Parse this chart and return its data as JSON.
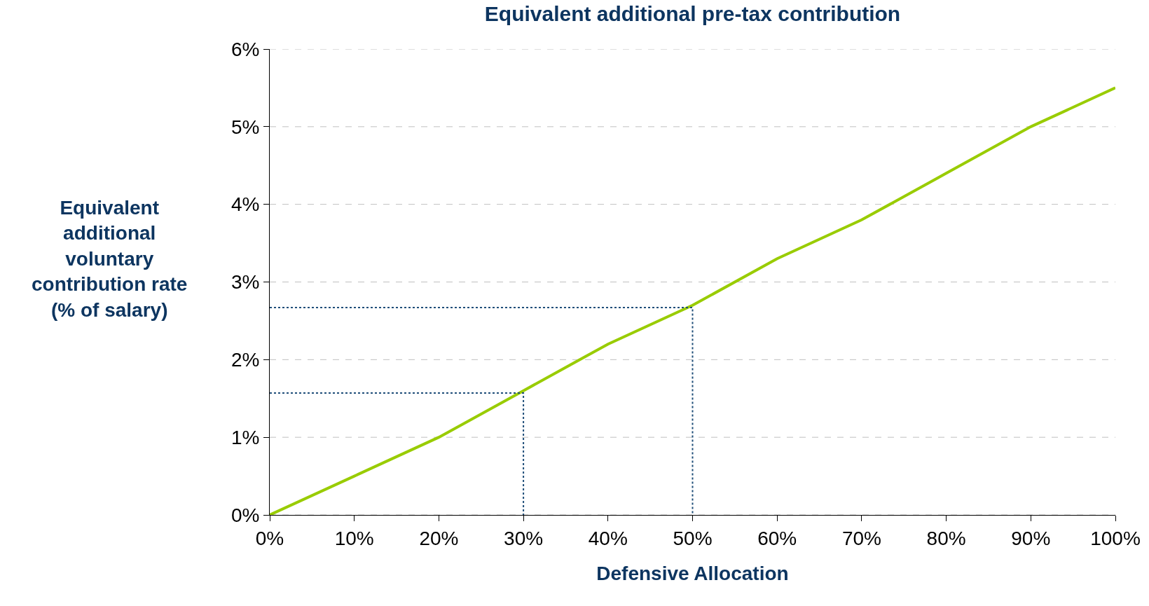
{
  "chart_data": {
    "type": "line",
    "title": "Equivalent additional pre-tax contribution",
    "xlabel": "Defensive Allocation",
    "ylabel": "Equivalent additional voluntary contribution rate (% of salary)",
    "x": [
      0,
      10,
      20,
      30,
      40,
      50,
      60,
      70,
      80,
      90,
      100
    ],
    "series": [
      {
        "color": "#99cc00",
        "values": [
          0,
          0.5,
          1.0,
          1.6,
          2.2,
          2.7,
          3.3,
          3.8,
          4.4,
          5.0,
          5.5
        ]
      },
      {
        "color": "#1f4e79",
        "line_style": "dotted",
        "x": [
          0,
          30,
          30
        ],
        "values": [
          1.57,
          1.57,
          0
        ]
      },
      {
        "color": "#1f4e79",
        "line_style": "dotted",
        "x": [
          0,
          50,
          50
        ],
        "values": [
          2.67,
          2.67,
          0
        ]
      }
    ],
    "xlim": [
      0,
      100
    ],
    "ylim": [
      0,
      6
    ],
    "xticks": [
      {
        "value": 0,
        "label": "0%"
      },
      {
        "value": 10,
        "label": "10%"
      },
      {
        "value": 20,
        "label": "20%"
      },
      {
        "value": 30,
        "label": "30%"
      },
      {
        "value": 40,
        "label": "40%"
      },
      {
        "value": 50,
        "label": "50%"
      },
      {
        "value": 60,
        "label": "60%"
      },
      {
        "value": 70,
        "label": "70%"
      },
      {
        "value": 80,
        "label": "80%"
      },
      {
        "value": 90,
        "label": "90%"
      },
      {
        "value": 100,
        "label": "100%"
      }
    ],
    "yticks": [
      {
        "value": 0,
        "label": "0%"
      },
      {
        "value": 1,
        "label": "1%"
      },
      {
        "value": 2,
        "label": "2%"
      },
      {
        "value": 3,
        "label": "3%"
      },
      {
        "value": 4,
        "label": "4%"
      },
      {
        "value": 5,
        "label": "5%"
      },
      {
        "value": 6,
        "label": "6%"
      }
    ],
    "grid": "y",
    "marker": "none",
    "line_style": "solid"
  }
}
